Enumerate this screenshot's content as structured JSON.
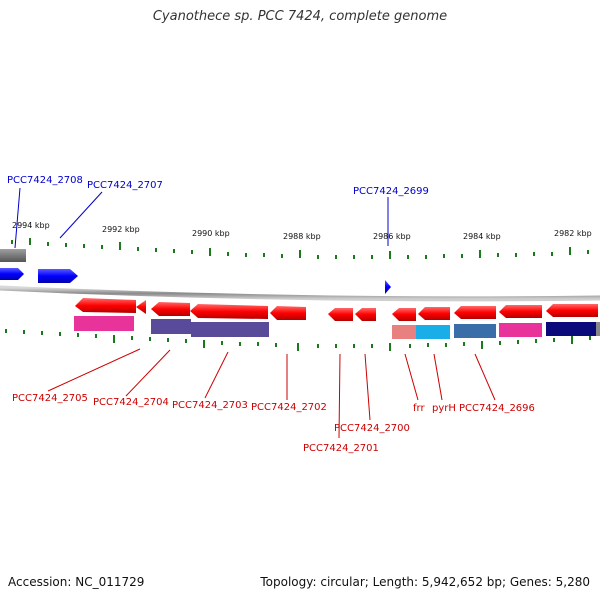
{
  "title": "Cyanothece sp. PCC 7424, complete genome",
  "footer": {
    "accession": "Accession: NC_011729",
    "stats": "Topology: circular; Length: 5,942,652 bp; Genes: 5,280"
  },
  "colors": {
    "forward_label": "#0000cc",
    "reverse_label": "#cc0000",
    "ticks": "#1a7a1a",
    "backbone": "#888888"
  },
  "ticks": [
    "2994 kbp",
    "2992 kbp",
    "2990 kbp",
    "2988 kbp",
    "2986 kbp",
    "2984 kbp",
    "2982 kbp"
  ],
  "forward_labels": [
    "PCC7424_2708",
    "PCC7424_2707",
    "PCC7424_2699"
  ],
  "reverse_labels": [
    "PCC7424_2705",
    "PCC7424_2704",
    "PCC7424_2703",
    "PCC7424_2702",
    "PCC7424_2701",
    "PCC7424_2700",
    "frr",
    "pyrH",
    "PCC7424_2696"
  ]
}
